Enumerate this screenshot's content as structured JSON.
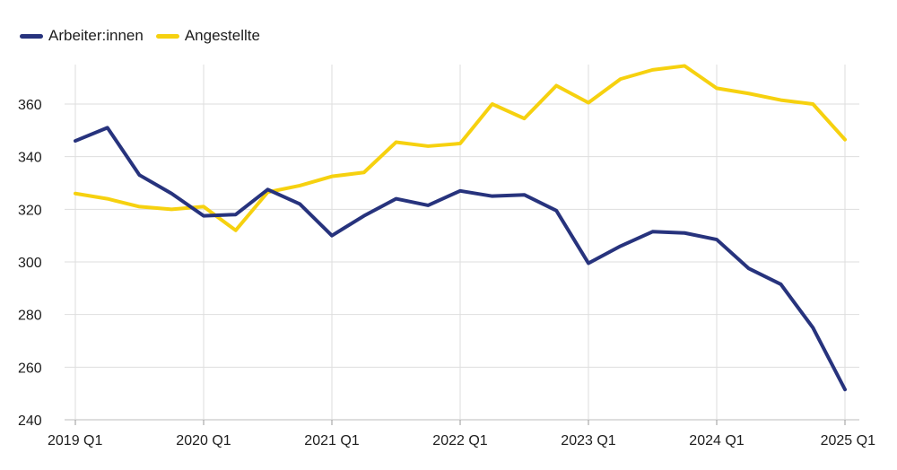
{
  "chart_data": {
    "type": "line",
    "x": [
      "2019 Q1",
      "2019 Q2",
      "2019 Q3",
      "2019 Q4",
      "2020 Q1",
      "2020 Q2",
      "2020 Q3",
      "2020 Q4",
      "2021 Q1",
      "2021 Q2",
      "2021 Q3",
      "2021 Q4",
      "2022 Q1",
      "2022 Q2",
      "2022 Q3",
      "2022 Q4",
      "2023 Q1",
      "2023 Q2",
      "2023 Q3",
      "2023 Q4",
      "2024 Q1",
      "2024 Q2",
      "2024 Q3",
      "2024 Q4",
      "2025 Q1"
    ],
    "xticks": [
      "2019 Q1",
      "2020 Q1",
      "2021 Q1",
      "2022 Q1",
      "2023 Q1",
      "2024 Q1",
      "2025 Q1"
    ],
    "yticks": [
      240,
      260,
      280,
      300,
      320,
      340,
      360
    ],
    "ylim": [
      240,
      375
    ],
    "grid": true,
    "legend_position": "top-left",
    "series": [
      {
        "name": "Arbeiter:innen",
        "color": "#27337d",
        "values": [
          346,
          351,
          333,
          326,
          317.5,
          318,
          327.5,
          322,
          310,
          317.5,
          324,
          321.5,
          327,
          325,
          325.5,
          319.5,
          299.5,
          306,
          311.5,
          311,
          308.5,
          297.5,
          291.5,
          275,
          251.5
        ]
      },
      {
        "name": "Angestellte",
        "color": "#f6d10f",
        "values": [
          326,
          324,
          321,
          320,
          321,
          312,
          326.5,
          329,
          332.5,
          334,
          345.5,
          344,
          345,
          360,
          354.5,
          367,
          360.5,
          369.5,
          373,
          374.5,
          366,
          364,
          361.5,
          360,
          346.5
        ]
      }
    ]
  }
}
